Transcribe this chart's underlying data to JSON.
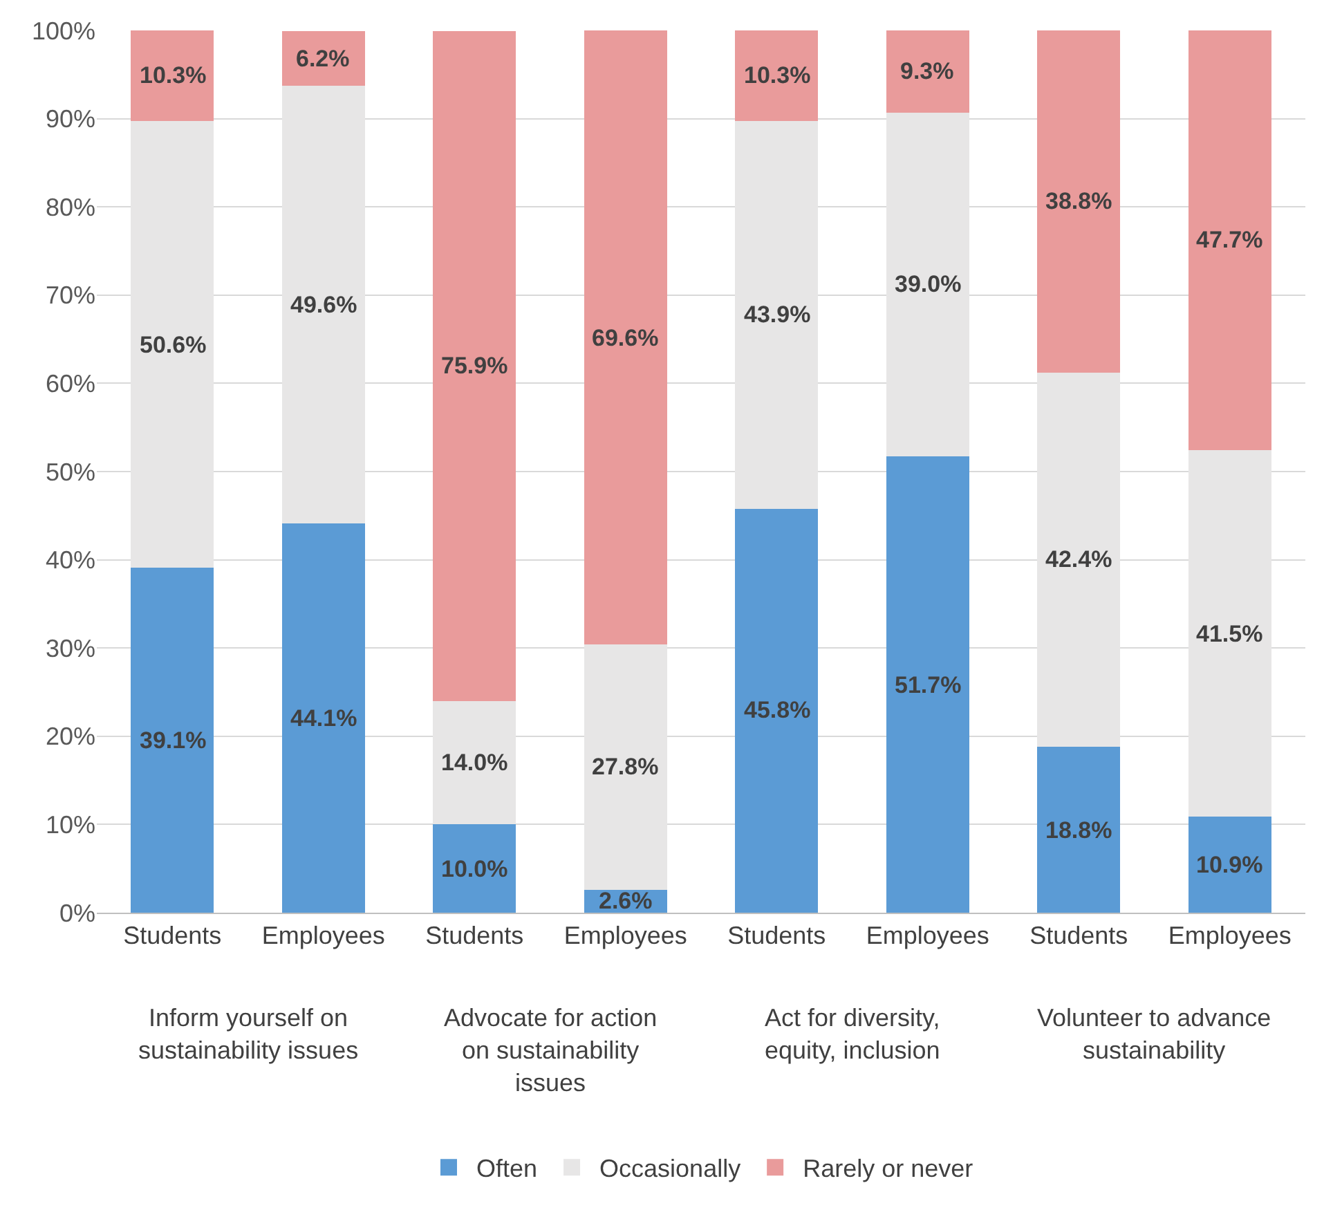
{
  "chart_data": {
    "type": "bar",
    "stacked": true,
    "categories": [
      "Students",
      "Employees",
      "Students",
      "Employees",
      "Students",
      "Employees",
      "Students",
      "Employees"
    ],
    "annotations": [
      "Inform yourself on sustainability issues",
      "Advocate for action on sustainability issues",
      "Act for diversity, equity, inclusion",
      "Volunteer to advance sustainability"
    ],
    "series": [
      {
        "name": "Often",
        "color": "#5b9bd5",
        "values": [
          39.1,
          44.1,
          10.0,
          2.6,
          45.8,
          51.7,
          18.8,
          10.9
        ],
        "value_labels": [
          "39.1%",
          "44.1%",
          "10.0%",
          "2.6%",
          "45.8%",
          "51.7%",
          "18.8%",
          "10.9%"
        ]
      },
      {
        "name": "Occasionally",
        "color": "#e7e6e6",
        "values": [
          50.6,
          49.6,
          14.0,
          27.8,
          43.9,
          39.0,
          42.4,
          41.5
        ],
        "value_labels": [
          "50.6%",
          "49.6%",
          "14.0%",
          "27.8%",
          "43.9%",
          "39.0%",
          "42.4%",
          "41.5%"
        ]
      },
      {
        "name": "Rarely or never",
        "color": "#e99b9b",
        "values": [
          10.3,
          6.2,
          75.9,
          69.6,
          10.3,
          9.3,
          38.8,
          47.7
        ],
        "value_labels": [
          "10.3%",
          "6.2%",
          "75.9%",
          "69.6%",
          "10.3%",
          "9.3%",
          "38.8%",
          "47.7%"
        ]
      }
    ],
    "ylim": [
      0,
      100
    ],
    "yticks": [
      {
        "value": 0,
        "label": "0%"
      },
      {
        "value": 10,
        "label": "10%"
      },
      {
        "value": 20,
        "label": "20%"
      },
      {
        "value": 30,
        "label": "30%"
      },
      {
        "value": 40,
        "label": "40%"
      },
      {
        "value": 50,
        "label": "50%"
      },
      {
        "value": 60,
        "label": "60%"
      },
      {
        "value": 70,
        "label": "70%"
      },
      {
        "value": 80,
        "label": "80%"
      },
      {
        "value": 90,
        "label": "90%"
      },
      {
        "value": 100,
        "label": "100%"
      }
    ],
    "grid": "y",
    "legend": "bottom"
  }
}
